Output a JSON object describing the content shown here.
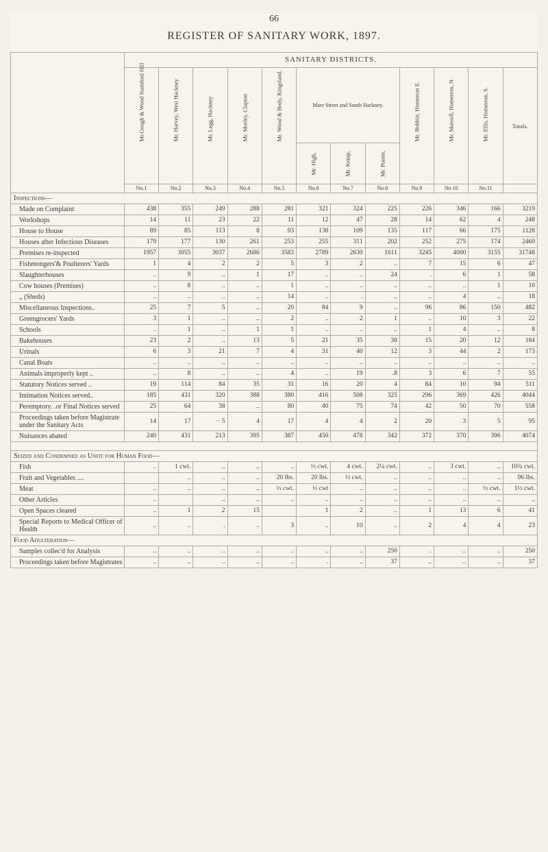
{
  "page_number": "66",
  "title": "REGISTER OF SANITARY WORK, 1897.",
  "super_header": "SANITARY DISTRICTS.",
  "columns": [
    {
      "name": "Mr.Gough & Wood Stamford Hill",
      "index": "No.1"
    },
    {
      "name": "Mr. Harvey, West Hackney",
      "index": "No.2"
    },
    {
      "name": "Mr. Legg, Hackney",
      "index": "No.3"
    },
    {
      "name": "Mr. Morley, Clapton",
      "index": "No.4"
    },
    {
      "name": "Mr. Wood & Body, Kingsland.",
      "index": "No.5"
    },
    {
      "name": "Mr. High,",
      "index": "No.6"
    },
    {
      "name": "Mr. Kemp,",
      "index": "No.7"
    },
    {
      "name": "Mr. Punter,",
      "index": "No.8"
    },
    {
      "name": "Mr. Bobbitt, Homerton E.",
      "index": "No.9"
    },
    {
      "name": "Mr. Mansell, Homerton, N.",
      "index": "No 10"
    },
    {
      "name": "Mr. Ellis, Homerton, S.",
      "index": "No.11"
    },
    {
      "name": "Totals.",
      "index": ""
    }
  ],
  "mare_street_header": "Mare Street and South Hackney.",
  "sections": [
    {
      "header": "Inspections—"
    },
    {
      "label": "Made on Complaint",
      "vals": [
        "438",
        "355",
        "249",
        "288",
        "281",
        "321",
        "324",
        "225",
        "226",
        "346",
        "166",
        "3219"
      ]
    },
    {
      "label": "Workshops",
      "vals": [
        "14",
        "11",
        "23",
        "22",
        "11",
        "12",
        "47",
        "28",
        "14",
        "62",
        "4",
        "248"
      ]
    },
    {
      "label": "House to House",
      "vals": [
        "89",
        "85",
        "113",
        "8",
        "93",
        "138",
        "109",
        "135",
        "117",
        "66",
        "175",
        "1128"
      ]
    },
    {
      "label": "Houses after Infectious Diseases",
      "vals": [
        "179",
        "177",
        "130",
        "261",
        "253",
        "255",
        "311",
        "202",
        "252",
        "275",
        "174",
        "2469"
      ]
    },
    {
      "label": "Premises re-inspected",
      "vals": [
        "1957",
        "3055",
        "3037",
        "2686",
        "3583",
        "2789",
        "2630",
        "1611",
        "3245",
        "4000",
        "3155",
        "31748"
      ]
    },
    {
      "label": "Fishmongers'& Poulterers' Yards",
      "vals": [
        "1",
        "4",
        "2",
        "2",
        "5",
        "3",
        "2",
        "..",
        "7",
        "15",
        "6",
        "47"
      ]
    },
    {
      "label": "Slaughterhouses",
      "vals": [
        "..",
        "9",
        "..",
        "1",
        "17",
        "..",
        "..",
        "24",
        ".",
        "6",
        "1",
        "58"
      ]
    },
    {
      "label": "Cow houses (Premises)",
      "vals": [
        "..",
        "8",
        "..",
        "..",
        "1",
        "..",
        "..",
        "..",
        "..",
        "..",
        "1",
        "10"
      ]
    },
    {
      "label": "„ (Sheds)",
      "vals": [
        "..",
        "..",
        "..",
        "..",
        "14",
        "..",
        ".",
        "..",
        "..",
        "4",
        "..",
        "18"
      ]
    },
    {
      "label": "Miscellaneous Inspections..",
      "vals": [
        "25",
        "7",
        "5",
        "..",
        "20",
        "84",
        "9",
        "..",
        "96",
        "86",
        "150",
        "482"
      ]
    },
    {
      "label": "Greengrocers' Yards",
      "vals": [
        "3",
        "1",
        "..",
        "..",
        "2",
        "..",
        "2",
        "1",
        "..",
        "10",
        "3",
        "22"
      ]
    },
    {
      "label": "Schools",
      "vals": [
        "..",
        "1",
        "..",
        "1",
        "1",
        "..",
        "..",
        "..",
        "1",
        "4",
        "..",
        "8"
      ]
    },
    {
      "label": "Bakehouses",
      "vals": [
        "23",
        "2",
        "..",
        "13",
        "5",
        "21",
        "35",
        "38",
        "15",
        "20",
        "12",
        "184"
      ]
    },
    {
      "label": "Urinals",
      "vals": [
        "6",
        "3",
        "21",
        "7",
        "4",
        "31",
        "40",
        "12",
        "3",
        "44",
        "2",
        "173"
      ]
    },
    {
      "label": "Canal Boats",
      "vals": [
        "..",
        "..",
        "..",
        "..",
        "..",
        "..",
        "..",
        "..",
        "..",
        "..",
        "..",
        ".."
      ]
    },
    {
      "label": "Animals improperly kept ..",
      "vals": [
        "..",
        "8",
        "..",
        "..",
        "4",
        "..",
        "19",
        ".8",
        "3",
        "6",
        "7",
        "55"
      ]
    },
    {
      "label": "Statutory Notices served ..",
      "vals": [
        "19",
        "114",
        "84",
        "35",
        "31",
        "16",
        "20",
        "4",
        "84",
        "10",
        "94",
        "511"
      ]
    },
    {
      "label": "Intimation Notices served..",
      "vals": [
        "185",
        "431",
        "320",
        "388",
        "380",
        "416",
        "508",
        "325",
        "296",
        "369",
        "426",
        "4044"
      ]
    },
    {
      "label": "Peremptory. .or Final Notices served",
      "vals": [
        "25",
        "64",
        "38",
        "..",
        "80",
        "40",
        "75",
        "74",
        "42",
        "50",
        "70",
        "558"
      ]
    },
    {
      "label": "Proceedings taken before Magistrate under the Sanitary Acts",
      "vals": [
        "14",
        "17",
        "·· 5",
        "4",
        "17",
        "4",
        "4",
        "2",
        "20",
        "3",
        "5",
        "95"
      ]
    },
    {
      "label": "Nuisances abated",
      "vals": [
        "240",
        "431",
        "213",
        "395",
        "387",
        "450",
        "478",
        "342",
        "372",
        "370",
        "396",
        "4074"
      ]
    },
    {
      "spacer": true
    },
    {
      "header": "Seized and Condemned as Unfit for Human Food—"
    },
    {
      "label": "Fish",
      "vals": [
        "..",
        "1 cwt.",
        "..",
        "..",
        "..",
        "½ cwt.",
        "4 cwt.",
        "2¼ cwt.",
        "..",
        "3 cwt.",
        "..",
        "10¾ cwt."
      ]
    },
    {
      "label": "Fruit and Vegetables ....",
      "vals": [
        "",
        "..",
        "..",
        "..",
        "20 lbs.",
        "20 lbs.",
        "½ cwt.",
        "..",
        "..",
        "..",
        "..",
        "96 lbs."
      ]
    },
    {
      "label": "Meat",
      "vals": [
        "..",
        "..",
        "..",
        "..",
        "½ cwt.",
        "½ cwt",
        "..",
        "..",
        "..",
        "..",
        "½ cwt.",
        "1½ cwt."
      ]
    },
    {
      "label": "Other Articles",
      "vals": [
        "..",
        "",
        "..",
        "..",
        "..",
        "..",
        "..",
        "..",
        "..",
        "..",
        "..",
        ".."
      ]
    },
    {
      "label": "Open Spaces cleared",
      "vals": [
        "..",
        "1",
        "2",
        "15",
        "",
        "1",
        "2",
        "..",
        "1",
        "13",
        "6",
        "41"
      ]
    },
    {
      "label": "Special Reports to Medical Officer of Health",
      "vals": [
        "..",
        "..",
        ".",
        "..",
        "3",
        "..",
        "10",
        "..",
        "2",
        "4",
        "4",
        "23"
      ]
    },
    {
      "header": "Food Adulteration—"
    },
    {
      "label": "Samples collec'd for Analysis",
      "vals": [
        "..",
        "..",
        "..",
        "..",
        "..",
        "..",
        "..",
        "250",
        ".",
        "..",
        "..",
        "250"
      ]
    },
    {
      "label": "Proceedings taken before Magistrates",
      "vals": [
        "..",
        "..",
        "..",
        "..",
        "..",
        ".",
        "..",
        "37",
        "..",
        "..",
        "..",
        "37"
      ]
    }
  ],
  "colors": {
    "page_bg": "#f4f1e8",
    "text": "#3a3a3a",
    "border": "#aaa"
  }
}
